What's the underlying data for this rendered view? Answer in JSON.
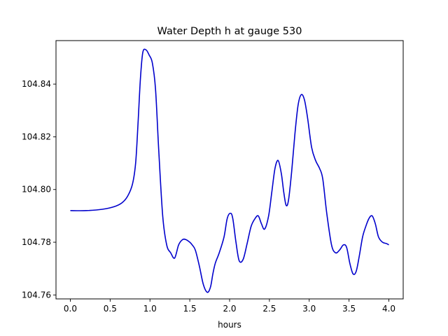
{
  "chart_data": {
    "type": "line",
    "title": "Water Depth h at gauge 530",
    "xlabel": "hours",
    "ylabel": "",
    "xlim": [
      -0.18,
      4.18
    ],
    "ylim": [
      104.7585,
      104.8565
    ],
    "xticks": [
      0.0,
      0.5,
      1.0,
      1.5,
      2.0,
      2.5,
      3.0,
      3.5,
      4.0
    ],
    "xtick_labels": [
      "0.0",
      "0.5",
      "1.0",
      "1.5",
      "2.0",
      "2.5",
      "3.0",
      "3.5",
      "4.0"
    ],
    "yticks": [
      104.76,
      104.78,
      104.8,
      104.82,
      104.84
    ],
    "ytick_labels": [
      "104.76",
      "104.78",
      "104.80",
      "104.82",
      "104.84"
    ],
    "grid": false,
    "legend": "none",
    "series": [
      {
        "color": "#0000cc",
        "x": [
          0.0,
          0.2,
          0.4,
          0.55,
          0.65,
          0.72,
          0.78,
          0.82,
          0.85,
          0.88,
          0.91,
          0.95,
          0.99,
          1.03,
          1.07,
          1.11,
          1.16,
          1.21,
          1.26,
          1.31,
          1.36,
          1.41,
          1.45,
          1.5,
          1.53,
          1.57,
          1.62,
          1.67,
          1.72,
          1.76,
          1.79,
          1.82,
          1.87,
          1.93,
          1.97,
          2.01,
          2.04,
          2.08,
          2.12,
          2.17,
          2.22,
          2.27,
          2.32,
          2.36,
          2.4,
          2.44,
          2.49,
          2.53,
          2.57,
          2.61,
          2.65,
          2.68,
          2.71,
          2.74,
          2.78,
          2.82,
          2.86,
          2.9,
          2.94,
          2.98,
          3.03,
          3.08,
          3.13,
          3.17,
          3.22,
          3.28,
          3.33,
          3.38,
          3.43,
          3.47,
          3.51,
          3.55,
          3.59,
          3.63,
          3.67,
          3.71,
          3.75,
          3.79,
          3.83,
          3.87,
          3.92,
          3.97,
          4.0
        ],
        "y": [
          104.792,
          104.792,
          104.7925,
          104.7935,
          104.795,
          104.7975,
          104.802,
          104.81,
          104.825,
          104.842,
          104.852,
          104.853,
          104.851,
          104.848,
          104.838,
          104.815,
          104.79,
          104.779,
          104.776,
          104.774,
          104.779,
          104.781,
          104.781,
          104.78,
          104.779,
          104.777,
          104.771,
          104.764,
          104.761,
          104.763,
          104.768,
          104.772,
          104.776,
          104.782,
          104.789,
          104.791,
          104.789,
          104.78,
          104.773,
          104.7735,
          104.7795,
          104.786,
          104.789,
          104.79,
          104.787,
          104.785,
          104.79,
          104.799,
          104.808,
          104.811,
          104.806,
          104.799,
          104.794,
          104.796,
          104.807,
          104.821,
          104.832,
          104.836,
          104.834,
          104.827,
          104.816,
          104.811,
          104.808,
          104.804,
          104.791,
          104.779,
          104.776,
          104.777,
          104.779,
          104.778,
          104.772,
          104.768,
          104.769,
          104.775,
          104.782,
          104.786,
          104.789,
          104.79,
          104.787,
          104.782,
          104.78,
          104.7795,
          104.779
        ]
      }
    ]
  }
}
